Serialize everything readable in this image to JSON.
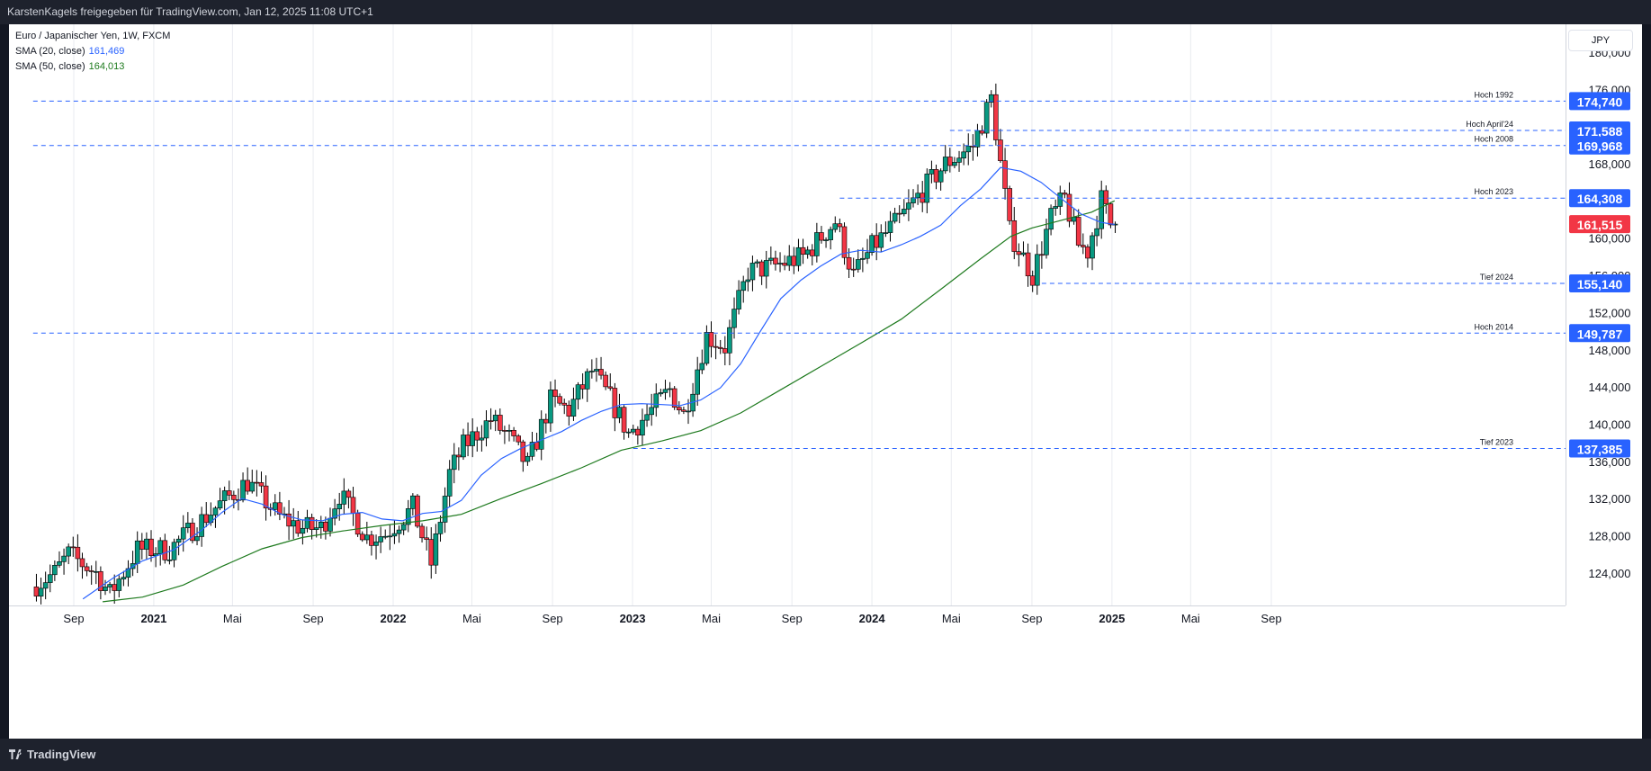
{
  "header": {
    "text": "KarstenKagels freigegeben für TradingView.com, Jan 12, 2025 11:08 UTC+1"
  },
  "legend": {
    "title": "Euro / Japanischer Yen, 1W, FXCM",
    "sma20": {
      "label": "SMA (20, close)",
      "value": "161,469",
      "color": "#2962ff"
    },
    "sma50": {
      "label": "SMA (50, close)",
      "value": "164,013",
      "color": "#1e7a1e"
    }
  },
  "unit": "JPY",
  "footer": {
    "brand": "TradingView"
  },
  "colors": {
    "up": "#089981",
    "down": "#f23645",
    "level": "#2962ff",
    "last": "#f23645"
  },
  "chart_data": {
    "type": "candlestick",
    "symbol": "Euro / Japanischer Yen",
    "interval": "1W",
    "source": "FXCM",
    "x_range": [
      "2020-07-01",
      "2025-10-01"
    ],
    "y_range": [
      120500,
      183000
    ],
    "y_ticks": [
      {
        "v": 180000,
        "label": "180,000"
      },
      {
        "v": 176000,
        "label": "176,000"
      },
      {
        "v": 168000,
        "label": "168,000"
      },
      {
        "v": 160000,
        "label": "160,000"
      },
      {
        "v": 156000,
        "label": "156,000"
      },
      {
        "v": 152000,
        "label": "152,000"
      },
      {
        "v": 148000,
        "label": "148,000"
      },
      {
        "v": 144000,
        "label": "144,000"
      },
      {
        "v": 140000,
        "label": "140,000"
      },
      {
        "v": 136000,
        "label": "136,000"
      },
      {
        "v": 132000,
        "label": "132,000"
      },
      {
        "v": 128000,
        "label": "128,000"
      },
      {
        "v": 124000,
        "label": "124,000"
      }
    ],
    "x_ticks": [
      {
        "date": "2020-09-01",
        "label": "Sep",
        "bold": false
      },
      {
        "date": "2021-01-01",
        "label": "2021",
        "bold": true
      },
      {
        "date": "2021-05-01",
        "label": "Mai",
        "bold": false
      },
      {
        "date": "2021-09-01",
        "label": "Sep",
        "bold": false
      },
      {
        "date": "2022-01-01",
        "label": "2022",
        "bold": true
      },
      {
        "date": "2022-05-01",
        "label": "Mai",
        "bold": false
      },
      {
        "date": "2022-09-01",
        "label": "Sep",
        "bold": false
      },
      {
        "date": "2023-01-01",
        "label": "2023",
        "bold": true
      },
      {
        "date": "2023-05-01",
        "label": "Mai",
        "bold": false
      },
      {
        "date": "2023-09-01",
        "label": "Sep",
        "bold": false
      },
      {
        "date": "2024-01-01",
        "label": "2024",
        "bold": true
      },
      {
        "date": "2024-05-01",
        "label": "Mai",
        "bold": false
      },
      {
        "date": "2024-09-01",
        "label": "Sep",
        "bold": false
      },
      {
        "date": "2025-01-01",
        "label": "2025",
        "bold": true
      },
      {
        "date": "2025-05-01",
        "label": "Mai",
        "bold": false
      },
      {
        "date": "2025-09-01",
        "label": "Sep",
        "bold": false
      }
    ],
    "levels": [
      {
        "name": "Hoch 1992",
        "value": 174740,
        "label": "174,740",
        "from": "2020-07-01"
      },
      {
        "name": "Hoch April'24",
        "value": 171588,
        "label": "171,588",
        "from": "2024-04-29"
      },
      {
        "name": "Hoch 2008",
        "value": 169968,
        "label": "169,968",
        "from": "2020-07-01"
      },
      {
        "name": "Hoch 2023",
        "value": 164308,
        "label": "164,308",
        "from": "2023-11-13"
      },
      {
        "name": "Tief 2024",
        "value": 155140,
        "label": "155,140",
        "from": "2024-09-16"
      },
      {
        "name": "Hoch 2014",
        "value": 149787,
        "label": "149,787",
        "from": "2020-07-01"
      },
      {
        "name": "Tief 2023",
        "value": 137385,
        "label": "137,385",
        "from": "2023-01-02"
      }
    ],
    "last_price": {
      "value": 161515,
      "label": "161,515"
    },
    "sma20": [
      [
        "2020-09-15",
        121200
      ],
      [
        "2020-11-01",
        123500
      ],
      [
        "2020-12-15",
        125300
      ],
      [
        "2021-02-01",
        126500
      ],
      [
        "2021-03-15",
        128600
      ],
      [
        "2021-04-15",
        130500
      ],
      [
        "2021-05-15",
        132000
      ],
      [
        "2021-06-15",
        131400
      ],
      [
        "2021-07-15",
        130300
      ],
      [
        "2021-08-15",
        129700
      ],
      [
        "2021-09-15",
        129600
      ],
      [
        "2021-10-15",
        130300
      ],
      [
        "2021-11-15",
        130500
      ],
      [
        "2021-12-15",
        129800
      ],
      [
        "2022-01-15",
        129600
      ],
      [
        "2022-02-15",
        130400
      ],
      [
        "2022-03-15",
        130600
      ],
      [
        "2022-04-15",
        131800
      ],
      [
        "2022-05-15",
        134500
      ],
      [
        "2022-06-15",
        136300
      ],
      [
        "2022-07-15",
        137400
      ],
      [
        "2022-08-15",
        138300
      ],
      [
        "2022-09-15",
        139200
      ],
      [
        "2022-10-15",
        140400
      ],
      [
        "2022-11-15",
        141400
      ],
      [
        "2022-12-15",
        142100
      ],
      [
        "2023-01-15",
        142200
      ],
      [
        "2023-02-15",
        142100
      ],
      [
        "2023-03-15",
        142000
      ],
      [
        "2023-04-15",
        142600
      ],
      [
        "2023-05-15",
        143900
      ],
      [
        "2023-06-15",
        146500
      ],
      [
        "2023-07-15",
        150000
      ],
      [
        "2023-08-15",
        153500
      ],
      [
        "2023-09-15",
        155500
      ],
      [
        "2023-10-15",
        157000
      ],
      [
        "2023-11-15",
        158300
      ],
      [
        "2023-12-15",
        158700
      ],
      [
        "2024-01-15",
        158500
      ],
      [
        "2024-02-15",
        159300
      ],
      [
        "2024-03-15",
        160200
      ],
      [
        "2024-04-15",
        161400
      ],
      [
        "2024-05-15",
        163500
      ],
      [
        "2024-06-15",
        165300
      ],
      [
        "2024-07-15",
        167600
      ],
      [
        "2024-08-15",
        167200
      ],
      [
        "2024-09-15",
        166000
      ],
      [
        "2024-10-15",
        164300
      ],
      [
        "2024-11-15",
        162600
      ],
      [
        "2024-12-15",
        161700
      ],
      [
        "2025-01-05",
        161469
      ]
    ],
    "sma50": [
      [
        "2020-10-15",
        120900
      ],
      [
        "2020-12-15",
        121400
      ],
      [
        "2021-02-15",
        122700
      ],
      [
        "2021-04-15",
        124700
      ],
      [
        "2021-06-15",
        126600
      ],
      [
        "2021-08-15",
        127800
      ],
      [
        "2021-10-15",
        128500
      ],
      [
        "2021-12-15",
        129100
      ],
      [
        "2022-02-15",
        129600
      ],
      [
        "2022-04-15",
        130300
      ],
      [
        "2022-06-15",
        132000
      ],
      [
        "2022-08-15",
        133600
      ],
      [
        "2022-10-15",
        135300
      ],
      [
        "2022-12-15",
        137200
      ],
      [
        "2023-02-15",
        138200
      ],
      [
        "2023-04-15",
        139300
      ],
      [
        "2023-06-15",
        141200
      ],
      [
        "2023-08-15",
        143700
      ],
      [
        "2023-10-15",
        146200
      ],
      [
        "2023-12-15",
        148700
      ],
      [
        "2024-02-15",
        151300
      ],
      [
        "2024-04-15",
        154500
      ],
      [
        "2024-06-15",
        157800
      ],
      [
        "2024-07-31",
        160200
      ],
      [
        "2024-09-01",
        161100
      ],
      [
        "2024-10-15",
        161900
      ],
      [
        "2024-12-01",
        162800
      ],
      [
        "2025-01-05",
        164013
      ]
    ],
    "ohlc_anchors": [
      [
        "2020-07-06",
        122500
      ],
      [
        "2020-08-10",
        124000
      ],
      [
        "2020-08-31",
        126000
      ],
      [
        "2020-10-12",
        124000
      ],
      [
        "2020-11-02",
        121700
      ],
      [
        "2020-12-14",
        126500
      ],
      [
        "2021-02-01",
        126500
      ],
      [
        "2021-04-12",
        131000
      ],
      [
        "2021-05-31",
        133800
      ],
      [
        "2021-07-19",
        130000
      ],
      [
        "2021-08-23",
        128800
      ],
      [
        "2021-09-20",
        128800
      ],
      [
        "2021-10-18",
        132500
      ],
      [
        "2021-11-29",
        127800
      ],
      [
        "2021-12-27",
        128200
      ],
      [
        "2022-02-07",
        131000
      ],
      [
        "2022-03-07",
        125000
      ],
      [
        "2022-04-04",
        134700
      ],
      [
        "2022-04-25",
        137600
      ],
      [
        "2022-06-06",
        140500
      ],
      [
        "2022-07-04",
        138500
      ],
      [
        "2022-08-01",
        135500
      ],
      [
        "2022-09-05",
        142500
      ],
      [
        "2022-10-03",
        141500
      ],
      [
        "2022-11-07",
        145700
      ],
      [
        "2022-12-05",
        142700
      ],
      [
        "2023-01-02",
        139000
      ],
      [
        "2023-02-06",
        141500
      ],
      [
        "2023-03-06",
        143700
      ],
      [
        "2023-03-27",
        141000
      ],
      [
        "2023-05-01",
        149500
      ],
      [
        "2023-05-29",
        148300
      ],
      [
        "2023-07-03",
        156400
      ],
      [
        "2023-08-07",
        156900
      ],
      [
        "2023-09-25",
        158000
      ],
      [
        "2023-11-13",
        161800
      ],
      [
        "2023-12-11",
        156000
      ],
      [
        "2024-01-08",
        159000
      ],
      [
        "2024-02-19",
        162000
      ],
      [
        "2024-03-18",
        164500
      ],
      [
        "2024-04-29",
        168000
      ],
      [
        "2024-06-10",
        169900
      ],
      [
        "2024-07-08",
        175000
      ],
      [
        "2024-07-29",
        164500
      ],
      [
        "2024-08-05",
        160700
      ],
      [
        "2024-09-09",
        156000
      ],
      [
        "2024-10-07",
        162200
      ],
      [
        "2024-10-28",
        164300
      ],
      [
        "2024-11-18",
        159300
      ],
      [
        "2024-12-02",
        158600
      ],
      [
        "2024-12-23",
        164100
      ],
      [
        "2025-01-06",
        161515
      ]
    ]
  }
}
